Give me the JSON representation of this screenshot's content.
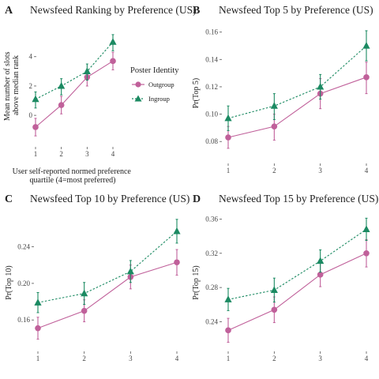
{
  "legend": {
    "title": "Poster Identity",
    "items": [
      {
        "label": "Outgroup",
        "color": "#c0609a",
        "marker": "circle",
        "line": "solid"
      },
      {
        "label": "Ingroup",
        "color": "#1b8a62",
        "marker": "triangle",
        "line": "dashed"
      }
    ],
    "placement": "right of panel A"
  },
  "colors": {
    "outgroup": "#c0609a",
    "ingroup": "#1b8a62"
  },
  "chart_data": [
    {
      "panel": "A",
      "type": "line",
      "title": "Newsfeed Ranking by Preference (US)",
      "xlabel": "User self-reported normed preference\nquartile (4=most preferred)",
      "ylabel": "Mean number of slots\nabove median rank",
      "x": [
        1,
        2,
        3,
        4
      ],
      "xticks": [
        "1",
        "2",
        "3",
        "4"
      ],
      "yticks": [
        0,
        2,
        4
      ],
      "ylim": [
        -1.5,
        5.6
      ],
      "grid": false,
      "series": [
        {
          "name": "Outgroup",
          "values": [
            -0.8,
            0.7,
            2.6,
            3.7
          ],
          "lower": [
            -1.4,
            0.1,
            2.0,
            3.1
          ],
          "upper": [
            -0.2,
            1.3,
            3.1,
            4.3
          ]
        },
        {
          "name": "Ingroup",
          "values": [
            1.1,
            2.0,
            3.0,
            5.0
          ],
          "lower": [
            0.5,
            1.4,
            2.4,
            4.4
          ],
          "upper": [
            1.6,
            2.5,
            3.5,
            5.5
          ]
        }
      ]
    },
    {
      "panel": "B",
      "type": "line",
      "title": "Newsfeed Top 5 by Preference (US)",
      "xlabel": "",
      "ylabel": "Pr(Top 5)",
      "x": [
        1,
        2,
        3,
        4
      ],
      "xticks": [
        "1",
        "2",
        "3",
        "4"
      ],
      "yticks": [
        0.08,
        0.1,
        0.12,
        0.14,
        0.16
      ],
      "ytick_labels": [
        "0.08",
        "0.10",
        "0.12",
        "0.14",
        "0.16"
      ],
      "ylim": [
        0.068,
        0.165
      ],
      "grid": false,
      "series": [
        {
          "name": "Outgroup",
          "values": [
            0.083,
            0.091,
            0.115,
            0.127
          ],
          "lower": [
            0.075,
            0.081,
            0.104,
            0.115
          ],
          "upper": [
            0.091,
            0.1,
            0.126,
            0.138
          ]
        },
        {
          "name": "Ingroup",
          "values": [
            0.097,
            0.106,
            0.12,
            0.15
          ],
          "lower": [
            0.088,
            0.096,
            0.111,
            0.139
          ],
          "upper": [
            0.106,
            0.115,
            0.129,
            0.161
          ]
        }
      ]
    },
    {
      "panel": "C",
      "type": "line",
      "title": "Newsfeed Top 10 by Preference (US)",
      "xlabel": "",
      "ylabel": "Pr(Top 10)",
      "x": [
        1,
        2,
        3,
        4
      ],
      "xticks": [
        "1",
        "2",
        "3",
        "4"
      ],
      "yticks": [
        0.16,
        0.2,
        0.24
      ],
      "ytick_labels": [
        "0.16",
        "0.20",
        "0.24"
      ],
      "ylim": [
        0.13,
        0.275
      ],
      "grid": false,
      "series": [
        {
          "name": "Outgroup",
          "values": [
            0.151,
            0.17,
            0.207,
            0.223
          ],
          "lower": [
            0.139,
            0.158,
            0.194,
            0.209
          ],
          "upper": [
            0.163,
            0.182,
            0.22,
            0.237
          ]
        },
        {
          "name": "Ingroup",
          "values": [
            0.179,
            0.189,
            0.213,
            0.257
          ],
          "lower": [
            0.168,
            0.177,
            0.201,
            0.244
          ],
          "upper": [
            0.19,
            0.201,
            0.225,
            0.27
          ]
        }
      ]
    },
    {
      "panel": "D",
      "type": "line",
      "title": "Newsfeed Top 15 by Preference (US)",
      "xlabel": "",
      "ylabel": "Pr(Top 15)",
      "x": [
        1,
        2,
        3,
        4
      ],
      "xticks": [
        "1",
        "2",
        "3",
        "4"
      ],
      "yticks": [
        0.24,
        0.28,
        0.32,
        0.36
      ],
      "ytick_labels": [
        "0.24",
        "0.28",
        "0.32",
        "0.36"
      ],
      "ylim": [
        0.21,
        0.365
      ],
      "grid": false,
      "series": [
        {
          "name": "Outgroup",
          "values": [
            0.23,
            0.254,
            0.295,
            0.32
          ],
          "lower": [
            0.216,
            0.239,
            0.281,
            0.304
          ],
          "upper": [
            0.244,
            0.269,
            0.309,
            0.336
          ]
        },
        {
          "name": "Ingroup",
          "values": [
            0.266,
            0.277,
            0.311,
            0.348
          ],
          "lower": [
            0.253,
            0.263,
            0.298,
            0.335
          ],
          "upper": [
            0.279,
            0.291,
            0.324,
            0.361
          ]
        }
      ]
    }
  ]
}
